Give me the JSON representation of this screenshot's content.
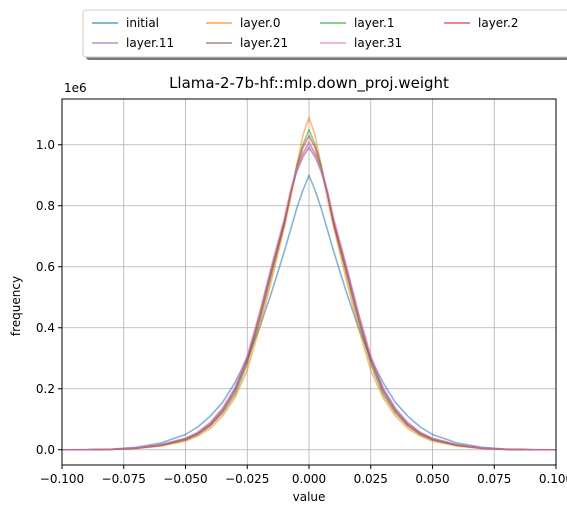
{
  "chart_data": {
    "type": "line",
    "title": "Llama-2-7b-hf::mlp.down_proj.weight",
    "xlabel": "value",
    "ylabel": "frequency",
    "y_scale_label": "1e6",
    "xlim": [
      -0.1,
      0.1
    ],
    "ylim": [
      -0.05,
      1.15
    ],
    "x_ticks": [
      -0.1,
      -0.075,
      -0.05,
      -0.025,
      0.0,
      0.025,
      0.05,
      0.075,
      0.1
    ],
    "x_tick_labels": [
      "−0.100",
      "−0.075",
      "−0.050",
      "−0.025",
      "0.000",
      "0.025",
      "0.050",
      "0.075",
      "0.100"
    ],
    "y_ticks": [
      0.0,
      0.2,
      0.4,
      0.6,
      0.8,
      1.0
    ],
    "y_tick_labels": [
      "0.0",
      "0.2",
      "0.4",
      "0.6",
      "0.8",
      "1.0"
    ],
    "grid": true,
    "legend_placement": "top-center-outside",
    "x": [
      -0.1,
      -0.09,
      -0.08,
      -0.07,
      -0.06,
      -0.05,
      -0.045,
      -0.04,
      -0.035,
      -0.03,
      -0.025,
      -0.02,
      -0.015,
      -0.01,
      -0.0075,
      -0.005,
      -0.0025,
      0.0,
      0.0025,
      0.005,
      0.0075,
      0.01,
      0.015,
      0.02,
      0.025,
      0.03,
      0.035,
      0.04,
      0.045,
      0.05,
      0.06,
      0.07,
      0.08,
      0.09,
      0.1
    ],
    "series": [
      {
        "name": "initial",
        "color": "#1f77b4",
        "values": [
          0.0,
          0.0005,
          0.002,
          0.008,
          0.022,
          0.05,
          0.075,
          0.11,
          0.155,
          0.22,
          0.3,
          0.4,
          0.52,
          0.65,
          0.72,
          0.79,
          0.85,
          0.9,
          0.85,
          0.79,
          0.72,
          0.65,
          0.52,
          0.4,
          0.3,
          0.22,
          0.155,
          0.11,
          0.075,
          0.05,
          0.022,
          0.008,
          0.002,
          0.0005,
          0.0
        ]
      },
      {
        "name": "layer.0",
        "color": "#ff7f0e",
        "values": [
          0.0,
          0.0,
          0.001,
          0.004,
          0.012,
          0.028,
          0.045,
          0.07,
          0.11,
          0.17,
          0.26,
          0.4,
          0.56,
          0.73,
          0.82,
          0.93,
          1.03,
          1.09,
          1.03,
          0.93,
          0.82,
          0.73,
          0.56,
          0.4,
          0.26,
          0.17,
          0.11,
          0.07,
          0.045,
          0.028,
          0.012,
          0.004,
          0.001,
          0.0,
          0.0
        ]
      },
      {
        "name": "layer.1",
        "color": "#2ca02c",
        "values": [
          0.0,
          0.0,
          0.001,
          0.005,
          0.014,
          0.032,
          0.05,
          0.078,
          0.12,
          0.18,
          0.28,
          0.42,
          0.58,
          0.74,
          0.84,
          0.93,
          1.0,
          1.05,
          1.0,
          0.93,
          0.84,
          0.74,
          0.58,
          0.42,
          0.28,
          0.18,
          0.12,
          0.078,
          0.05,
          0.032,
          0.014,
          0.005,
          0.001,
          0.0,
          0.0
        ]
      },
      {
        "name": "layer.2",
        "color": "#d62728",
        "values": [
          0.0,
          0.0,
          0.001,
          0.005,
          0.015,
          0.034,
          0.052,
          0.08,
          0.125,
          0.19,
          0.29,
          0.43,
          0.59,
          0.74,
          0.84,
          0.92,
          0.99,
          1.03,
          0.99,
          0.92,
          0.84,
          0.74,
          0.59,
          0.43,
          0.29,
          0.19,
          0.125,
          0.08,
          0.052,
          0.034,
          0.015,
          0.005,
          0.001,
          0.0,
          0.0
        ]
      },
      {
        "name": "layer.11",
        "color": "#9467bd",
        "values": [
          0.0,
          0.0,
          0.0012,
          0.0055,
          0.016,
          0.036,
          0.055,
          0.085,
          0.13,
          0.195,
          0.3,
          0.44,
          0.6,
          0.75,
          0.84,
          0.92,
          0.97,
          1.01,
          0.97,
          0.92,
          0.84,
          0.75,
          0.6,
          0.44,
          0.3,
          0.195,
          0.13,
          0.085,
          0.055,
          0.036,
          0.016,
          0.0055,
          0.0012,
          0.0,
          0.0
        ]
      },
      {
        "name": "layer.21",
        "color": "#8c564b",
        "values": [
          0.0,
          0.0,
          0.0012,
          0.0055,
          0.016,
          0.037,
          0.056,
          0.087,
          0.133,
          0.2,
          0.3,
          0.445,
          0.6,
          0.75,
          0.84,
          0.91,
          0.96,
          0.99,
          0.96,
          0.91,
          0.84,
          0.75,
          0.6,
          0.445,
          0.3,
          0.2,
          0.133,
          0.087,
          0.056,
          0.037,
          0.016,
          0.0055,
          0.0012,
          0.0,
          0.0
        ]
      },
      {
        "name": "layer.31",
        "color": "#e377c2",
        "values": [
          0.0,
          0.0,
          0.0013,
          0.006,
          0.017,
          0.038,
          0.058,
          0.09,
          0.137,
          0.205,
          0.31,
          0.45,
          0.61,
          0.76,
          0.85,
          0.92,
          0.97,
          1.0,
          0.97,
          0.92,
          0.85,
          0.76,
          0.61,
          0.45,
          0.31,
          0.205,
          0.137,
          0.09,
          0.058,
          0.038,
          0.017,
          0.006,
          0.0013,
          0.0,
          0.0
        ]
      }
    ]
  }
}
